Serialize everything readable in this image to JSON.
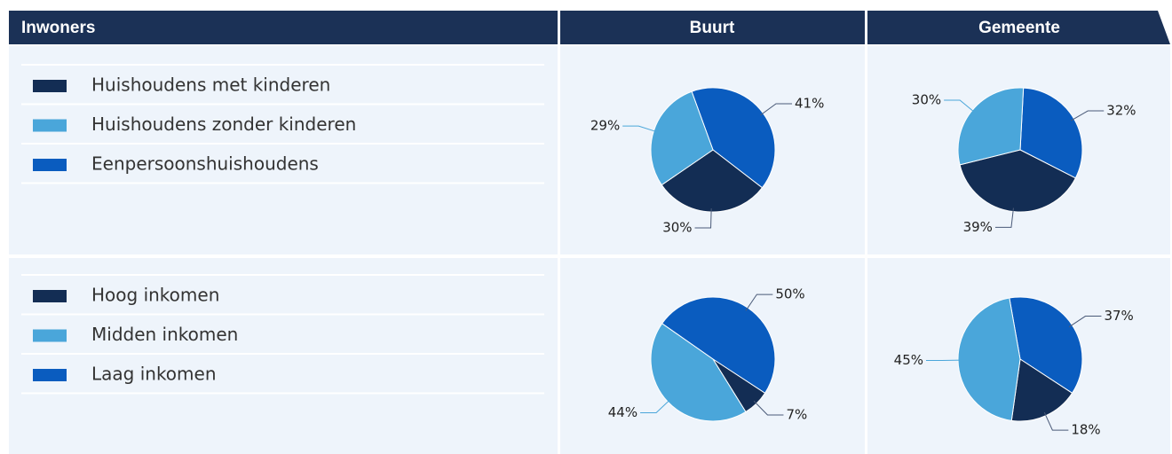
{
  "header": {
    "title": "Inwoners",
    "columns": [
      "Buurt",
      "Gemeente"
    ]
  },
  "chart_data": [
    {
      "type": "pie",
      "categories": [
        "Huishoudens met kinderen",
        "Huishoudens zonder kinderen",
        "Eenpersoonshuishoudens"
      ],
      "colors": [
        "#132d54",
        "#4aa6da",
        "#0a5cbf"
      ],
      "series": [
        {
          "values": [
            30,
            29,
            41
          ],
          "value_labels": [
            "30%",
            "29%",
            "41%"
          ]
        },
        {
          "values": [
            39,
            30,
            32
          ],
          "value_labels": [
            "39%",
            "30%",
            "32%"
          ]
        }
      ]
    },
    {
      "type": "pie",
      "categories": [
        "Hoog inkomen",
        "Midden inkomen",
        "Laag inkomen"
      ],
      "colors": [
        "#132d54",
        "#4aa6da",
        "#0a5cbf"
      ],
      "series": [
        {
          "values": [
            7,
            44,
            50
          ],
          "value_labels": [
            "7%",
            "44%",
            "50%"
          ]
        },
        {
          "values": [
            18,
            45,
            37
          ],
          "value_labels": [
            "18%",
            "45%",
            "37%"
          ]
        }
      ]
    }
  ]
}
